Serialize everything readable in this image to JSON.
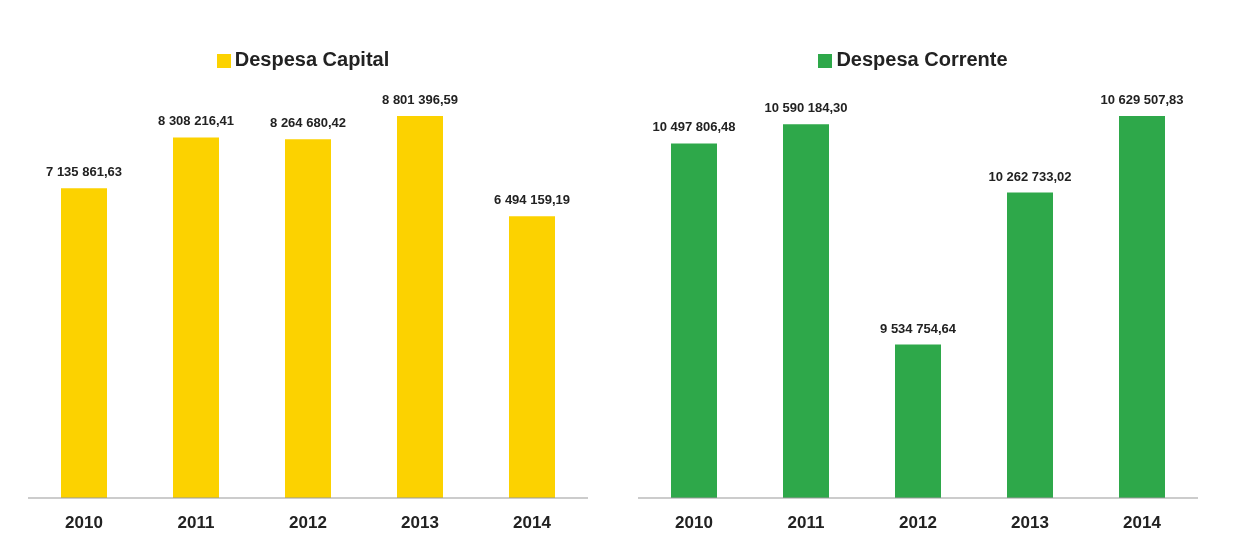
{
  "chart_data": [
    {
      "type": "bar",
      "categories": [
        "2010",
        "2011",
        "2012",
        "2013",
        "2014"
      ],
      "tick_labels": "x",
      "grid": false,
      "legend": "top",
      "series": [
        {
          "name": "Despesa Capital",
          "color": "#fcd200",
          "values": [
            7135861.63,
            8308216.41,
            8264680.42,
            8801396.59,
            6494159.19
          ],
          "value_labels": [
            "7 135 861,63",
            "8 308 216,41",
            "8 264 680,42",
            "8 801 396,59",
            "6 494 159,19"
          ]
        }
      ]
    },
    {
      "type": "bar",
      "categories": [
        "2010",
        "2011",
        "2012",
        "2013",
        "2014"
      ],
      "ylim": [
        8800000,
        10629507.83
      ],
      "tick_labels": "x",
      "grid": false,
      "legend": "top",
      "series": [
        {
          "name": "Despesa Corrente",
          "color": "#2ea84a",
          "values": [
            10497806.48,
            10590184.3,
            9534754.64,
            10262733.02,
            10629507.83
          ],
          "value_labels": [
            "10 497 806,48",
            "10 590 184,30",
            "9 534 754,64",
            "10 262 733,02",
            "10 629 507,83"
          ]
        }
      ]
    }
  ]
}
